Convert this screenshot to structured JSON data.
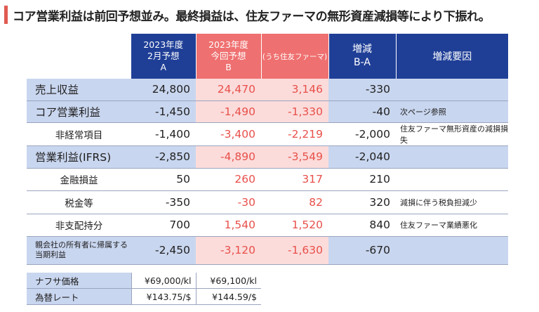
{
  "title": "コア営業利益は前回予想並み。最終損益は、住友ファーマの無形資産減損等により下振れ。",
  "header": {
    "col_a": [
      "2023年度",
      "2月予想",
      "A"
    ],
    "col_b": [
      "2023年度",
      "今回予想",
      "B"
    ],
    "col_s": "(うち住友ファーマ)",
    "col_d": [
      "増減",
      "B-A"
    ],
    "col_r": "増減要因"
  },
  "rows": [
    {
      "label": "売上収益",
      "a": "24,800",
      "b": "24,470",
      "s": "3,146",
      "d": "-330",
      "reason": ""
    },
    {
      "label": "コア営業利益",
      "a": "-1,450",
      "b": "-1,490",
      "s": "-1,330",
      "d": "-40",
      "reason": "次ページ参照"
    },
    {
      "label": "非経常項目",
      "a": "-1,400",
      "b": "-3,400",
      "s": "-2,219",
      "d": "-2,000",
      "reason": "住友ファーマ無形資産の減損損失"
    },
    {
      "label": "営業利益(IFRS)",
      "a": "-2,850",
      "b": "-4,890",
      "s": "-3,549",
      "d": "-2,040",
      "reason": ""
    },
    {
      "label": "金融損益",
      "a": "50",
      "b": "260",
      "s": "317",
      "d": "210",
      "reason": ""
    },
    {
      "label": "税金等",
      "a": "-350",
      "b": "-30",
      "s": "82",
      "d": "320",
      "reason": "減損に伴う税負担減少"
    },
    {
      "label": "非支配持分",
      "a": "700",
      "b": "1,540",
      "s": "1,520",
      "d": "840",
      "reason": "住友ファーマ業績悪化"
    },
    {
      "label": "親会社の所有者に帰属する当期利益",
      "a": "-2,450",
      "b": "-3,120",
      "s": "-1,630",
      "d": "-670",
      "reason": ""
    }
  ],
  "sub": [
    {
      "label": "ナフサ価格",
      "a": "¥69,000/kl",
      "b": "¥69,100/kl"
    },
    {
      "label": "為替レート",
      "a": "¥143.75/$",
      "b": "¥144.59/$"
    }
  ]
}
